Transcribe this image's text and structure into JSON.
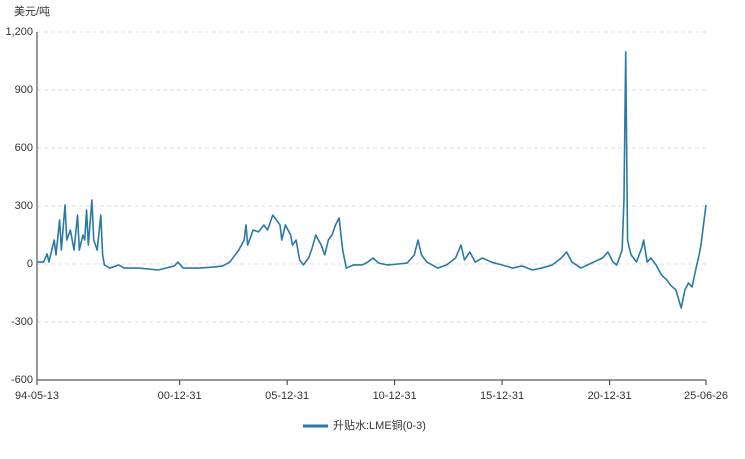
{
  "chart_data": {
    "type": "line",
    "y_axis_label": "美元/吨",
    "ylim": [
      -600,
      1200
    ],
    "yticks": [
      -600,
      -300,
      0,
      300,
      600,
      900,
      {
        "value": 1200,
        "label": "1,200"
      }
    ],
    "xlim": [
      "1994-05-13",
      "2025-06-26"
    ],
    "xticks": [
      {
        "value": "1994-05-13",
        "label": "94-05-13"
      },
      {
        "value": "2000-12-31",
        "label": "00-12-31"
      },
      {
        "value": "2005-12-31",
        "label": "05-12-31"
      },
      {
        "value": "2010-12-31",
        "label": "10-12-31"
      },
      {
        "value": "2015-12-31",
        "label": "15-12-31"
      },
      {
        "value": "2020-12-31",
        "label": "20-12-31"
      },
      {
        "value": "2025-06-26",
        "label": "25-06-26"
      }
    ],
    "grid": true,
    "legend": "bottom",
    "x": [
      "1994-05-13",
      "1994-09",
      "1994-11",
      "1994-12",
      "1995-03",
      "1995-04",
      "1995-06",
      "1995-07",
      "1995-09",
      "1995-10",
      "1995-12",
      "1996-02",
      "1996-04",
      "1996-05",
      "1996-07",
      "1996-08",
      "1996-09",
      "1996-10",
      "1996-12",
      "1997-01",
      "1997-03",
      "1997-05",
      "1997-06",
      "1997-07",
      "1997-10",
      "1998-03",
      "1998-06",
      "1999-02",
      "2000-01",
      "2000-10",
      "2000-12",
      "2001-03",
      "2001-12",
      "2002-08",
      "2003-01",
      "2003-05",
      "2003-10",
      "2004-01",
      "2004-02",
      "2004-03",
      "2004-06",
      "2004-09",
      "2004-12",
      "2005-02",
      "2005-05",
      "2005-07",
      "2005-09",
      "2005-10",
      "2005-12",
      "2006-03",
      "2006-04",
      "2006-06",
      "2006-08",
      "2006-10",
      "2007-01",
      "2007-03",
      "2007-05",
      "2007-08",
      "2007-10",
      "2007-12",
      "2008-02",
      "2008-04",
      "2008-06",
      "2008-08",
      "2008-10",
      "2009-02",
      "2009-07",
      "2009-10",
      "2010-01",
      "2010-04",
      "2010-09",
      "2011-03",
      "2011-08",
      "2011-12",
      "2012-02",
      "2012-04",
      "2012-07",
      "2013-01",
      "2013-06",
      "2013-11",
      "2014-02",
      "2014-04",
      "2014-07",
      "2014-10",
      "2015-02",
      "2015-07",
      "2016-01",
      "2016-07",
      "2016-12",
      "2017-06",
      "2017-11",
      "2018-05",
      "2018-10",
      "2019-01",
      "2019-04",
      "2019-09",
      "2020-03",
      "2020-09",
      "2020-12",
      "2021-03",
      "2021-05",
      "2021-08",
      "2021-09",
      "2021-10",
      "2021-11",
      "2021-12",
      "2022-01",
      "2022-04",
      "2022-07",
      "2022-08",
      "2022-10",
      "2022-12",
      "2023-03",
      "2023-06",
      "2023-09",
      "2023-11",
      "2024-02",
      "2024-05",
      "2024-07",
      "2024-09",
      "2024-11",
      "2025-01",
      "2025-03",
      "2025-04",
      "2025-06-26"
    ],
    "series": [
      {
        "name": "升贴水:LME铜(0-3)",
        "color": "#2a7aa3",
        "values": [
          10,
          10,
          52,
          10,
          124,
          47,
          228,
          72,
          305,
          124,
          176,
          72,
          253,
          72,
          150,
          124,
          279,
          98,
          331,
          124,
          72,
          253,
          47,
          -5,
          -21,
          -5,
          -21,
          -21,
          -31,
          -10,
          10,
          -21,
          -21,
          -16,
          -10,
          10,
          72,
          124,
          202,
          98,
          176,
          166,
          202,
          176,
          253,
          228,
          202,
          124,
          202,
          150,
          98,
          124,
          21,
          -5,
          31,
          83,
          150,
          98,
          47,
          124,
          150,
          202,
          238,
          72,
          -21,
          -5,
          -5,
          10,
          31,
          5,
          -5,
          0,
          5,
          47,
          124,
          47,
          10,
          -21,
          -5,
          31,
          98,
          21,
          62,
          10,
          31,
          10,
          -5,
          -21,
          -10,
          -31,
          -21,
          -5,
          31,
          62,
          10,
          -21,
          5,
          31,
          62,
          10,
          -5,
          72,
          331,
          1097,
          124,
          83,
          47,
          10,
          83,
          124,
          10,
          31,
          -5,
          -57,
          -83,
          -109,
          -135,
          -228,
          -135,
          -98,
          -119,
          -31,
          47,
          98,
          305
        ]
      }
    ]
  }
}
